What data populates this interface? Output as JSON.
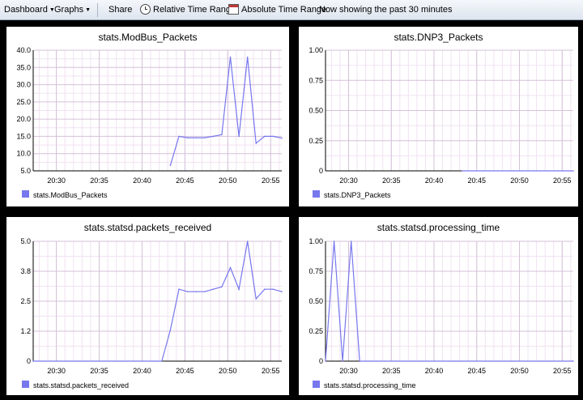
{
  "toolbar": {
    "dashboard_label": "Dashboard",
    "graphs_label": "Graphs",
    "share_label": "Share",
    "relative_label": "Relative Time Range",
    "absolute_label": "Absolute Time Range",
    "status_text": "Now showing the past 30 minutes"
  },
  "panels": [
    {
      "title": "stats.ModBus_Packets",
      "legend": "stats.ModBus_Packets"
    },
    {
      "title": "stats.DNP3_Packets",
      "legend": "stats.DNP3_Packets"
    },
    {
      "title": "stats.statsd.packets_received",
      "legend": "stats.statsd.packets_received"
    },
    {
      "title": "stats.statsd.processing_time",
      "legend": "stats.statsd.processing_time"
    }
  ],
  "chart_data": [
    {
      "type": "line",
      "title": "stats.ModBus_Packets",
      "ylim": [
        5,
        40
      ],
      "xlim": [
        27.3,
        56.3
      ],
      "yticks": [
        "5.0",
        "10.0",
        "15.0",
        "20.0",
        "25.0",
        "30.0",
        "35.0",
        "40.0"
      ],
      "ytick_values": [
        5,
        10,
        15,
        20,
        25,
        30,
        35,
        40
      ],
      "xticks": [
        "20:30",
        "20:35",
        "20:40",
        "20:45",
        "20:50",
        "20:55"
      ],
      "xtick_values": [
        30,
        35,
        40,
        45,
        50,
        55
      ],
      "grid": true,
      "legend_position": "bottom-left",
      "series": [
        {
          "name": "stats.ModBus_Packets",
          "color": "#7777ee",
          "x": [
            43.3,
            44.3,
            45.3,
            46.3,
            47.3,
            48.3,
            49.3,
            50.3,
            51.3,
            52.3,
            53.3,
            54.3,
            55.3,
            56.3
          ],
          "y": [
            6.6,
            15,
            14.6,
            14.6,
            14.6,
            15,
            15.5,
            38,
            15,
            38,
            13,
            15,
            15,
            14.5
          ]
        }
      ]
    },
    {
      "type": "line",
      "title": "stats.DNP3_Packets",
      "ylim": [
        0,
        1
      ],
      "xlim": [
        27.3,
        56.3
      ],
      "yticks": [
        "0",
        "0.25",
        "0.50",
        "0.75",
        "1.00"
      ],
      "ytick_values": [
        0,
        0.25,
        0.5,
        0.75,
        1
      ],
      "xticks": [
        "20:30",
        "20:35",
        "20:40",
        "20:45",
        "20:50",
        "20:55"
      ],
      "xtick_values": [
        30,
        35,
        40,
        45,
        50,
        55
      ],
      "grid": true,
      "legend_position": "bottom-left",
      "series": [
        {
          "name": "stats.DNP3_Packets",
          "color": "#7777ee",
          "x": [
            43.3,
            56.3
          ],
          "y": [
            0,
            0
          ]
        }
      ]
    },
    {
      "type": "line",
      "title": "stats.statsd.packets_received",
      "ylim": [
        0,
        5
      ],
      "xlim": [
        27.3,
        56.3
      ],
      "yticks": [
        "0",
        "1.2",
        "2.5",
        "3.8",
        "5.0"
      ],
      "ytick_values": [
        0,
        1.25,
        2.5,
        3.75,
        5
      ],
      "xticks": [
        "20:30",
        "20:35",
        "20:40",
        "20:45",
        "20:50",
        "20:55"
      ],
      "xtick_values": [
        30,
        35,
        40,
        45,
        50,
        55
      ],
      "grid": true,
      "legend_position": "bottom-left",
      "series": [
        {
          "name": "stats.statsd.packets_received",
          "color": "#7777ee",
          "x": [
            27.3,
            42.3,
            43.3,
            44.3,
            45.3,
            46.3,
            47.3,
            48.3,
            49.3,
            50.3,
            51.3,
            52.3,
            53.3,
            54.3,
            55.3,
            56.3
          ],
          "y": [
            0,
            0,
            1.3,
            3,
            2.9,
            2.9,
            2.9,
            3,
            3.1,
            3.9,
            3,
            5,
            2.6,
            3,
            3,
            2.9
          ]
        }
      ]
    },
    {
      "type": "line",
      "title": "stats.statsd.processing_time",
      "ylim": [
        0,
        1
      ],
      "xlim": [
        27.3,
        56.3
      ],
      "yticks": [
        "0",
        "0.25",
        "0.50",
        "0.75",
        "1.00"
      ],
      "ytick_values": [
        0,
        0.25,
        0.5,
        0.75,
        1
      ],
      "xticks": [
        "20:30",
        "20:35",
        "20:40",
        "20:45",
        "20:50",
        "20:55"
      ],
      "xtick_values": [
        30,
        35,
        40,
        45,
        50,
        55
      ],
      "grid": true,
      "legend_position": "bottom-left",
      "series": [
        {
          "name": "stats.statsd.processing_time",
          "color": "#7777ee",
          "x": [
            27.3,
            28.3,
            29.3,
            30.3,
            31.3,
            56.3
          ],
          "y": [
            0,
            1,
            0,
            1,
            0,
            0
          ]
        }
      ]
    }
  ]
}
